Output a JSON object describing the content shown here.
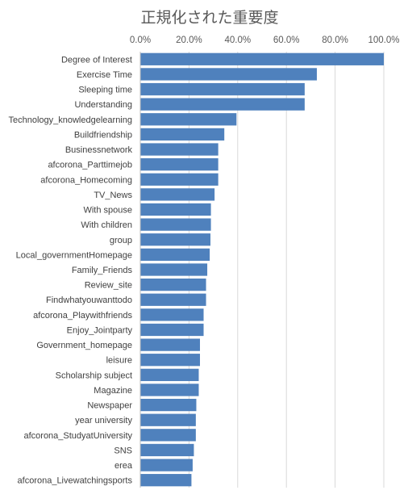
{
  "chart_data": {
    "type": "bar",
    "orientation": "horizontal",
    "title": "正規化された重要度",
    "xlabel": "",
    "ylabel": "",
    "xlim": [
      0,
      100
    ],
    "x_ticks": [
      "0.0%",
      "20.0%",
      "40.0%",
      "60.0%",
      "80.0%",
      "100.0%"
    ],
    "x_axis_position": "top",
    "grid": true,
    "bar_color": "#4f81bd",
    "categories": [
      "Degree of Interest",
      "Exercise Time",
      "Sleeping time",
      "Understanding",
      "Technology_knowledgelearning",
      "Buildfriendship",
      "Businessnetwork",
      "afcorona_Parttimejob",
      "afcorona_Homecoming",
      "TV_News",
      "With spouse",
      "With children",
      "group",
      "Local_governmentHomepage",
      "Family_Friends",
      "Review_site",
      "Findwhatyouwanttodo",
      "afcorona_Playwithfriends",
      "Enjoy_Jointparty",
      "Government_homepage",
      "leisure",
      "Scholarship subject",
      "Magazine",
      "Newspaper",
      "year university",
      "afcorona_StudyatUniversity",
      "SNS",
      "erea",
      "afcorona_Livewatchingsports"
    ],
    "values": [
      100.0,
      72.5,
      67.5,
      67.5,
      39.5,
      34.5,
      32.0,
      32.0,
      32.0,
      30.5,
      29.0,
      29.0,
      28.8,
      28.5,
      27.5,
      27.0,
      27.0,
      26.0,
      26.0,
      24.5,
      24.5,
      24.0,
      24.0,
      23.0,
      22.8,
      22.8,
      22.0,
      21.5,
      21.0
    ]
  }
}
